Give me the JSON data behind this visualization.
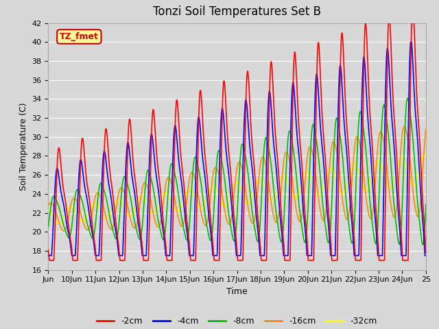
{
  "title": "Tonzi Soil Temperatures Set B",
  "xlabel": "Time",
  "ylabel": "Soil Temperature (C)",
  "ylim": [
    16,
    42
  ],
  "xlim": [
    0,
    16
  ],
  "xtick_labels": [
    "Jun",
    "10Jun",
    "11Jun",
    "12Jun",
    "13Jun",
    "14Jun",
    "15Jun",
    "16Jun",
    "17Jun",
    "18Jun",
    "19Jun",
    "20Jun",
    "21Jun",
    "22Jun",
    "23Jun",
    "24Jun",
    "25"
  ],
  "xtick_positions": [
    0,
    1,
    2,
    3,
    4,
    5,
    6,
    7,
    8,
    9,
    10,
    11,
    12,
    13,
    14,
    15,
    16
  ],
  "ytick_positions": [
    16,
    18,
    20,
    22,
    24,
    26,
    28,
    30,
    32,
    34,
    36,
    38,
    40,
    42
  ],
  "line_colors": [
    "#ff0000",
    "#0000ff",
    "#00bb00",
    "#ff8800",
    "#ffff00"
  ],
  "line_labels": [
    "-2cm",
    "-4cm",
    "-8cm",
    "-16cm",
    "-32cm"
  ],
  "line_widths": [
    1.2,
    1.2,
    1.2,
    1.2,
    1.2
  ],
  "legend_label": "TZ_fmet",
  "legend_bg": "#ffff99",
  "legend_edge": "#cc0000",
  "bg_color": "#d8d8d8",
  "plot_bg": "#d8d8d8",
  "title_fontsize": 12,
  "axis_fontsize": 9,
  "tick_fontsize": 8
}
